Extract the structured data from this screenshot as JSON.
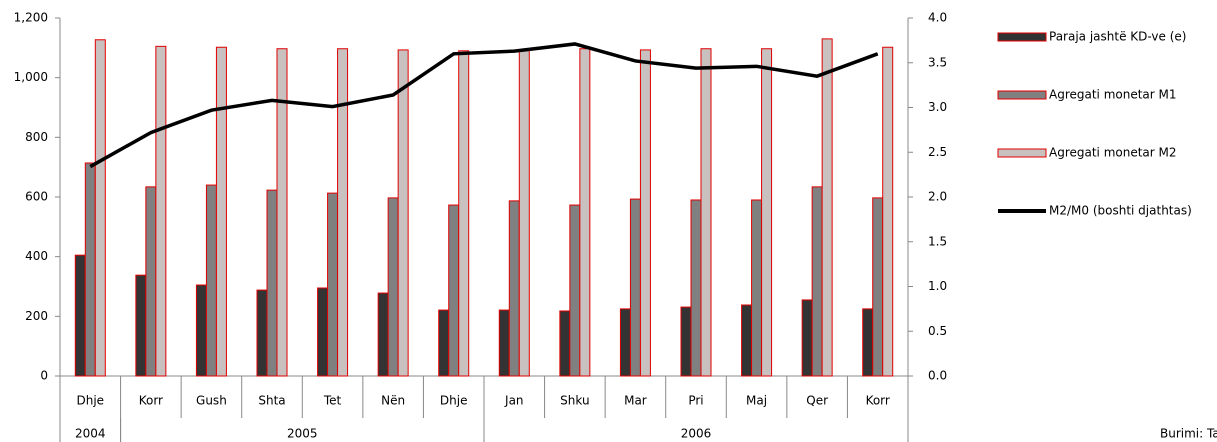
{
  "chart_data": {
    "type": "bar",
    "categories": [
      "Dhje",
      "Korr",
      "Gush",
      "Shta",
      "Tet",
      "Nën",
      "Dhje",
      "Jan",
      "Shku",
      "Mar",
      "Pri",
      "Maj",
      "Qer",
      "Korr"
    ],
    "category_groups": [
      {
        "label": "2004",
        "count": 1
      },
      {
        "label": "2005",
        "count": 6
      },
      {
        "label": "2006",
        "count": 7
      }
    ],
    "series": [
      {
        "name": "Paraja jashtë KD-ve (e)",
        "type": "bar",
        "color": "#333333",
        "border": "#e00000",
        "values": [
          405,
          338,
          305,
          288,
          295,
          278,
          221,
          221,
          218,
          225,
          231,
          238,
          255,
          225
        ]
      },
      {
        "name": "Agregati monetar M1",
        "type": "bar",
        "color": "#808080",
        "border": "#e00000",
        "values": [
          714,
          634,
          640,
          623,
          613,
          597,
          573,
          587,
          573,
          593,
          590,
          590,
          634,
          597
        ]
      },
      {
        "name": "Agregati monetar M2",
        "type": "bar",
        "color": "#c9c0c0",
        "border": "#e00000",
        "values": [
          1127,
          1105,
          1102,
          1097,
          1097,
          1093,
          1090,
          1093,
          1097,
          1093,
          1097,
          1097,
          1130,
          1102
        ]
      },
      {
        "name": "M2/M0 (boshti djathtas)",
        "type": "line",
        "axis": "y2",
        "color": "#000000",
        "values": [
          2.34,
          2.72,
          2.97,
          3.08,
          3.01,
          3.14,
          3.6,
          3.63,
          3.71,
          3.52,
          3.44,
          3.46,
          3.35,
          3.6
        ]
      }
    ],
    "ylim": [
      0,
      1200
    ],
    "yticks": [
      0,
      200,
      400,
      600,
      800,
      {
        "value": 1000,
        "label": "1,000"
      },
      {
        "value": 1200,
        "label": "1,200"
      }
    ],
    "y2lim": [
      0,
      4
    ],
    "y2ticks": [
      {
        "value": 0,
        "label": "0.0"
      },
      0.5,
      {
        "value": 1,
        "label": "1.0"
      },
      1.5,
      {
        "value": 2,
        "label": "2.0"
      },
      2.5,
      {
        "value": 3,
        "label": "3.0"
      },
      3.5,
      {
        "value": 4,
        "label": "4.0"
      }
    ],
    "legend": "right",
    "source": "Burimi: Ta"
  }
}
